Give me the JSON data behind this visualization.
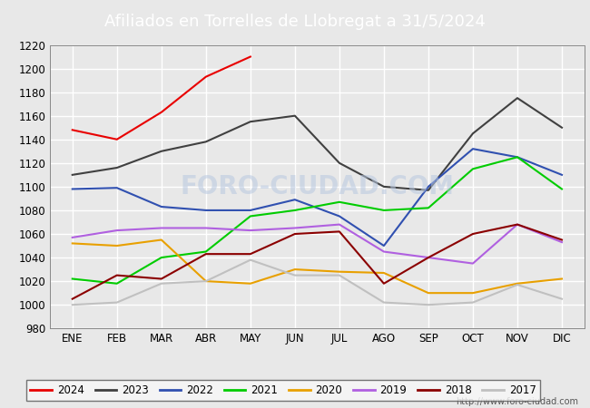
{
  "title": "Afiliados en Torrelles de Llobregat a 31/5/2024",
  "months": [
    "ENE",
    "FEB",
    "MAR",
    "ABR",
    "MAY",
    "JUN",
    "JUL",
    "AGO",
    "SEP",
    "OCT",
    "NOV",
    "DIC"
  ],
  "ylim": [
    980,
    1220
  ],
  "yticks": [
    980,
    1000,
    1020,
    1040,
    1060,
    1080,
    1100,
    1120,
    1140,
    1160,
    1180,
    1200,
    1220
  ],
  "series": {
    "2024": {
      "color": "#e80000",
      "data": [
        1148,
        1140,
        1163,
        1193,
        1210,
        null,
        null,
        null,
        null,
        null,
        null,
        null
      ]
    },
    "2023": {
      "color": "#404040",
      "data": [
        1110,
        1116,
        1130,
        1138,
        1155,
        1160,
        1120,
        1100,
        1097,
        1145,
        1175,
        1150
      ]
    },
    "2022": {
      "color": "#3050b0",
      "data": [
        1098,
        1099,
        1083,
        1080,
        1080,
        1089,
        1075,
        1050,
        1100,
        1132,
        1125,
        1110
      ]
    },
    "2021": {
      "color": "#00cc00",
      "data": [
        1022,
        1018,
        1040,
        1045,
        1075,
        1080,
        1087,
        1080,
        1082,
        1115,
        1125,
        1098
      ]
    },
    "2020": {
      "color": "#e8a000",
      "data": [
        1052,
        1050,
        1055,
        1020,
        1018,
        1030,
        1028,
        1027,
        1010,
        1010,
        1018,
        1022
      ]
    },
    "2019": {
      "color": "#b060e0",
      "data": [
        1057,
        1063,
        1065,
        1065,
        1063,
        1065,
        1068,
        1045,
        1040,
        1035,
        1068,
        1053
      ]
    },
    "2018": {
      "color": "#8b0000",
      "data": [
        1005,
        1025,
        1022,
        1043,
        1043,
        1060,
        1062,
        1018,
        1040,
        1060,
        1068,
        1055
      ]
    },
    "2017": {
      "color": "#c0c0c0",
      "data": [
        1000,
        1002,
        1018,
        1020,
        1038,
        1025,
        1025,
        1002,
        1000,
        1002,
        1017,
        1005
      ]
    }
  },
  "watermark": "FORO-CIUDAD.COM",
  "url": "http://www.foro-ciudad.com",
  "fig_bg_color": "#e8e8e8",
  "plot_bg_color": "#e8e8e8",
  "title_bar_color": "#4f81bd",
  "grid_color": "#ffffff",
  "grid_linewidth": 1.0,
  "line_linewidth": 1.5,
  "title_fontsize": 13,
  "tick_fontsize": 8.5,
  "legend_fontsize": 8.5
}
